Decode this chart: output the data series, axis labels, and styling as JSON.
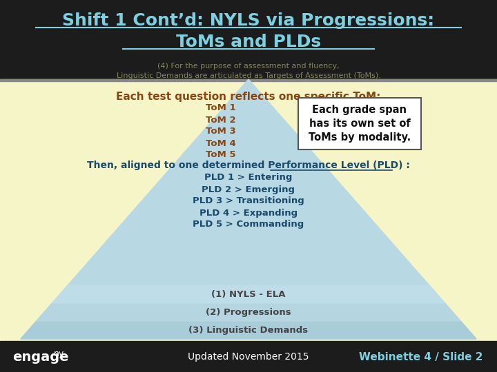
{
  "title_line1": "Shift 1 Cont’d: NYLS via Progressions:",
  "title_line2": "ToMs and PLDs",
  "title_bg": "#1c1c1c",
  "title_color": "#7ecfe0",
  "slide_bg": "#f5f5c8",
  "header_text1": "(4) For the purpose of assessment and fluency,",
  "header_text2": "Linguistic Demands are articulated as Targets of Assessment (ToMs).",
  "header_color": "#aaa870",
  "body_text": "Each test question reflects one specific ToM:",
  "body_color": "#8B4513",
  "toms": [
    "ToM 1",
    "ToM 2",
    "ToM 3",
    "ToM 4",
    "ToM 5"
  ],
  "toms_color": "#8B4513",
  "box_text": "Each grade span\nhas its own set of\nToMs by modality.",
  "box_bg": "#ffffff",
  "box_border": "#555555",
  "then_text": "Then, aligned to one determined Performance Level (PLD) :",
  "then_color": "#1a4a6b",
  "plds": [
    "PLD 1 > Entering",
    "PLD 2 > Emerging",
    "PLD 3 > Transitioning",
    "PLD 4 > Expanding",
    "PLD 5 > Commanding"
  ],
  "plds_color": "#1a4a6b",
  "pyramid_layers": [
    {
      "label": "(3) Linguistic Demands",
      "color": "#a8ccd8"
    },
    {
      "label": "(2) Progressions",
      "color": "#b5d5e0"
    },
    {
      "label": "(1) NYLS - ELA",
      "color": "#bfdde8"
    }
  ],
  "pyramid_label_color": "#444444",
  "pyramid_body_color": "#b8d8e3",
  "footer_bg": "#1c1c1c",
  "footer_left": "engage",
  "footer_left_super": "ny",
  "footer_mid": "Updated November 2015",
  "footer_right": "Webinette 4 / Slide 2",
  "footer_color": "#ffffff",
  "footer_right_color": "#7ecfe0"
}
